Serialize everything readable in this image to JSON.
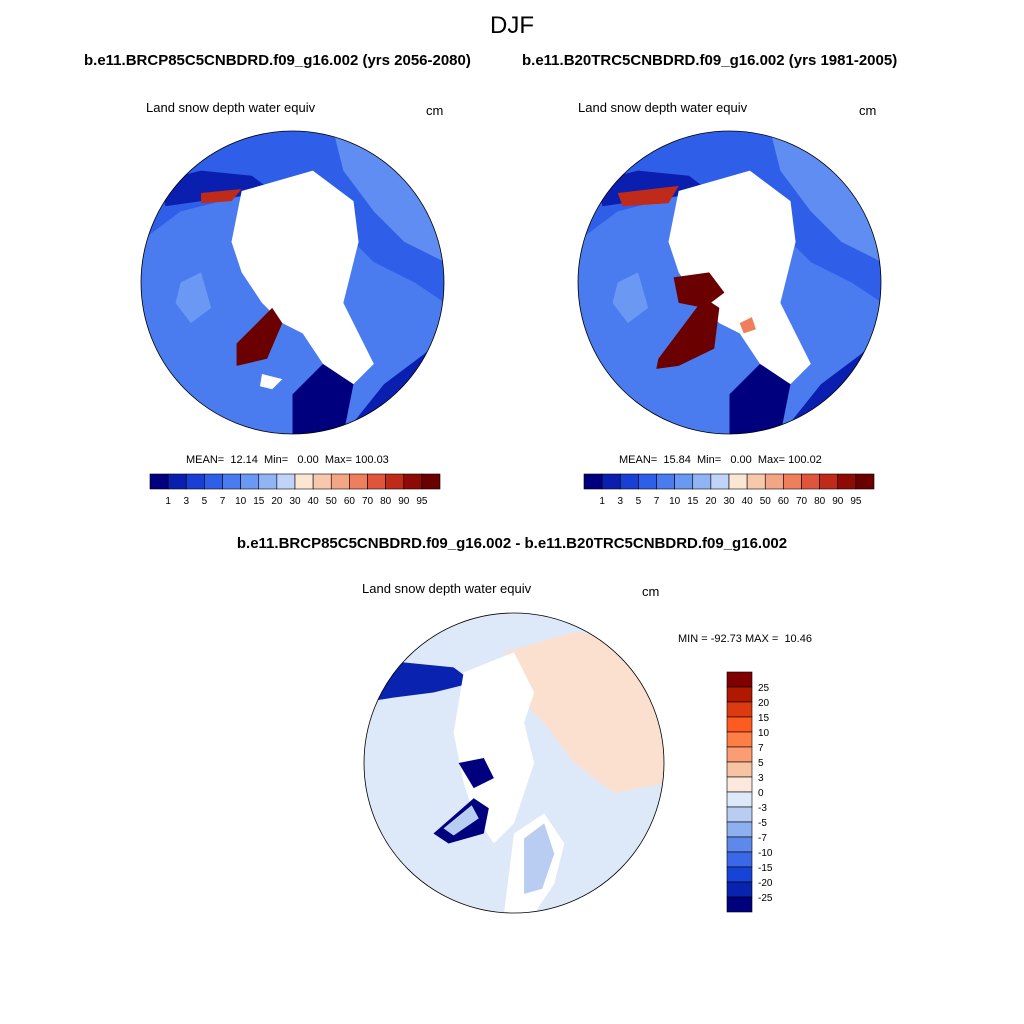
{
  "title": "DJF",
  "left_run": "b.e11.BRCP85C5CNBDRD.f09_g16.002 (yrs 2056-2080)",
  "right_run": "b.e11.B20TRC5CNBDRD.f09_g16.002 (yrs 1981-2005)",
  "diff_title": "b.e11.BRCP85C5CNBDRD.f09_g16.002 - b.e11.B20TRC5CNBDRD.f09_g16.002",
  "panels": {
    "left": {
      "label": "Land snow depth water equiv",
      "unit": "cm",
      "mean": "12.14",
      "min": "0.00",
      "max": "100.03"
    },
    "right": {
      "label": "Land snow depth water equiv",
      "unit": "cm",
      "mean": "15.84",
      "min": "0.00",
      "max": "100.02"
    },
    "diff": {
      "label": "Land snow depth water equiv",
      "unit": "cm",
      "min": "-92.73",
      "max": "10.46"
    }
  },
  "stats_labels": {
    "mean": "MEAN=",
    "min": "Min=",
    "max": "Max=",
    "min_caps": "MIN =",
    "max_caps": "MAX ="
  },
  "colorbar_abs": {
    "ticks": [
      "1",
      "3",
      "5",
      "7",
      "10",
      "15",
      "20",
      "30",
      "40",
      "50",
      "60",
      "70",
      "80",
      "90",
      "95"
    ],
    "colors": [
      "#00007f",
      "#0a1fb0",
      "#1a3fd6",
      "#2f5fe8",
      "#4a7cf0",
      "#6b98f2",
      "#91b4f5",
      "#bfd4f8",
      "#fbe6d4",
      "#f8c8ad",
      "#f4a585",
      "#ee7e5c",
      "#e0553a",
      "#c02a18",
      "#8f0a05",
      "#6a0000"
    ]
  },
  "colorbar_diff": {
    "ticks": [
      "25",
      "20",
      "15",
      "10",
      "7",
      "5",
      "3",
      "0",
      "-3",
      "-5",
      "-7",
      "-10",
      "-15",
      "-20",
      "-25"
    ],
    "colors": [
      "#7f0000",
      "#b01800",
      "#dc3a10",
      "#ff5a20",
      "#ff7e45",
      "#fc9c72",
      "#f6c3a3",
      "#fce8dc",
      "#dde9f8",
      "#b9cdf3",
      "#8fb0f0",
      "#5d89eb",
      "#3a68e8",
      "#1744d8",
      "#0a22b0",
      "#00007f"
    ]
  }
}
